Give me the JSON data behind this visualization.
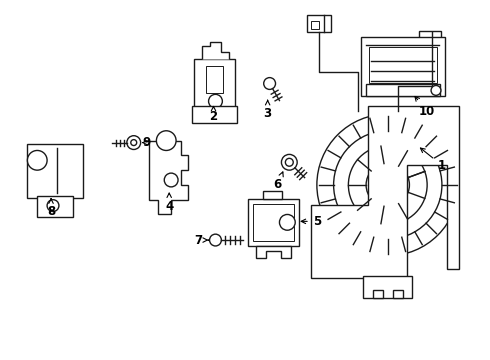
{
  "background_color": "#ffffff",
  "line_color": "#1a1a1a",
  "line_width": 1.0,
  "label_fontsize": 8.5,
  "label_color": "#000000",
  "fig_width": 4.9,
  "fig_height": 3.6,
  "dpi": 100
}
